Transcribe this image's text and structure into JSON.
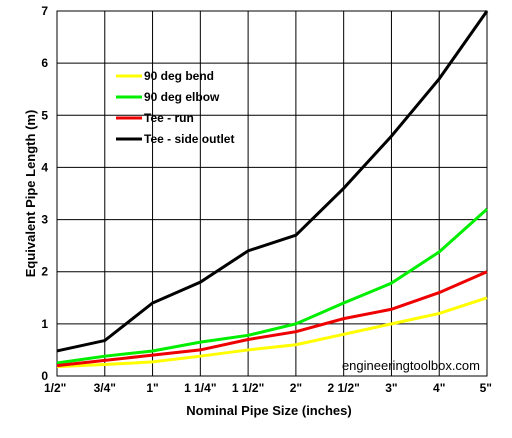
{
  "chart_data": {
    "type": "line",
    "title": "",
    "xlabel": "Nominal Pipe Size (inches)",
    "ylabel": "Equivalent Pipe Length (m)",
    "categories": [
      "1/2\"",
      "3/4\"",
      "1\"",
      "1 1/4\"",
      "1 1/2\"",
      "2\"",
      "2 1/2\"",
      "3\"",
      "4\"",
      "5\""
    ],
    "ylim": [
      0,
      7
    ],
    "yticks": [
      0,
      1,
      2,
      3,
      4,
      5,
      6,
      7
    ],
    "grid": true,
    "legend_position": "top-left",
    "series": [
      {
        "name": "90 deg bend",
        "color": "#ffff00",
        "values": [
          0.18,
          0.22,
          0.27,
          0.38,
          0.5,
          0.6,
          0.8,
          1.0,
          1.2,
          1.5
        ]
      },
      {
        "name": "90 deg elbow",
        "color": "#00ee00",
        "values": [
          0.25,
          0.38,
          0.48,
          0.65,
          0.78,
          1.0,
          1.4,
          1.78,
          2.38,
          3.2
        ]
      },
      {
        "name": "Tee - run",
        "color": "#ee0000",
        "values": [
          0.2,
          0.3,
          0.4,
          0.5,
          0.7,
          0.85,
          1.1,
          1.28,
          1.6,
          2.0
        ]
      },
      {
        "name": "Tee - side outlet",
        "color": "#000000",
        "values": [
          0.48,
          0.68,
          1.4,
          1.8,
          2.4,
          2.7,
          3.6,
          4.6,
          5.7,
          7.0
        ]
      }
    ]
  },
  "watermark": "engineeringtoolbox.com"
}
